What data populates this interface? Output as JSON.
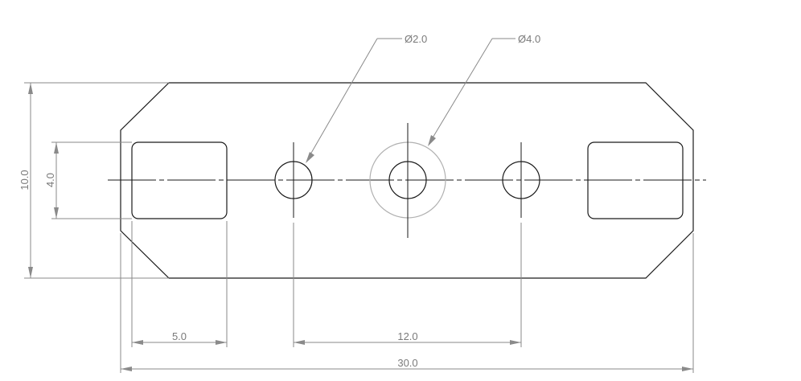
{
  "dimensions": {
    "height": "10.0",
    "slot_height": "4.0",
    "slot_width": "5.0",
    "hole_spacing": "12.0",
    "overall_width": "30.0"
  },
  "callouts": {
    "small_hole": "Ø2.0",
    "large_hole": "Ø4.0"
  }
}
